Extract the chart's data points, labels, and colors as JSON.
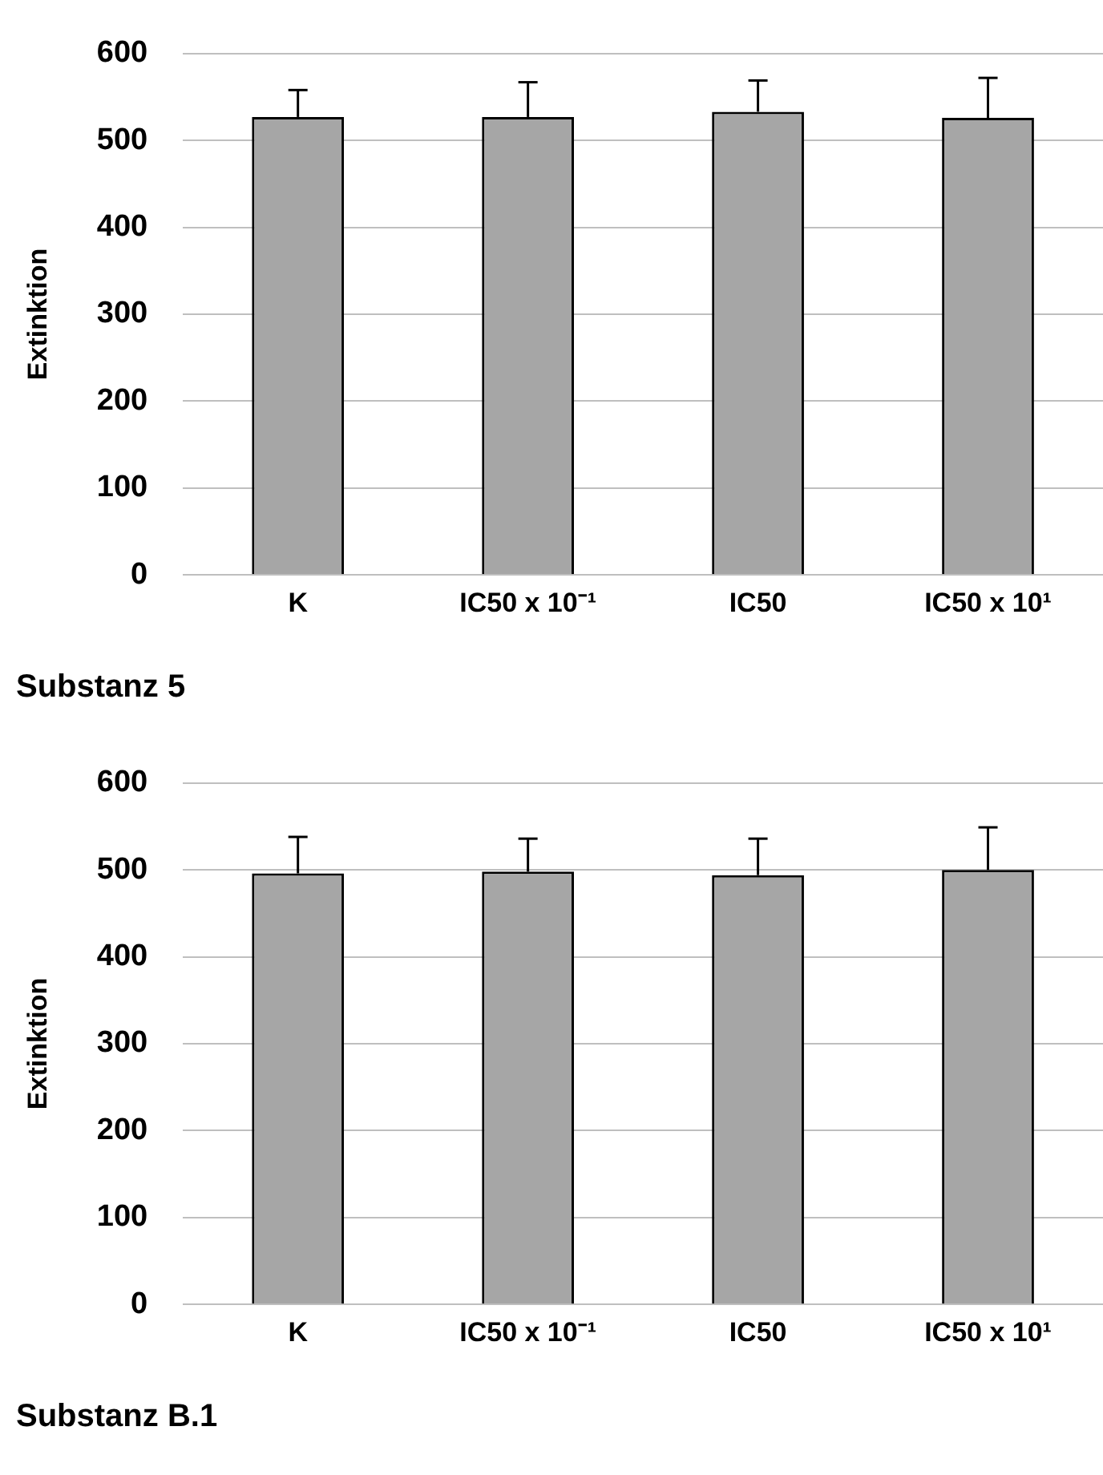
{
  "chart_data": [
    {
      "type": "bar",
      "title": "Substanz 5",
      "ylabel": "Extinktion",
      "categories": [
        "K",
        "IC50 x 10⁻¹",
        "IC50",
        "IC50 x 10¹"
      ],
      "values": [
        527,
        527,
        533,
        526
      ],
      "color": "#a6a6a6",
      "errors": [
        [
          527,
          558
        ],
        [
          527,
          567
        ],
        [
          533,
          569
        ],
        [
          526,
          572
        ]
      ],
      "ylim": [
        0,
        600
      ],
      "yticks": [
        0,
        100,
        200,
        300,
        400,
        500,
        600
      ],
      "grid": "y",
      "legend": false
    },
    {
      "type": "bar",
      "title": "Substanz B.1",
      "ylabel": "Extinktion",
      "categories": [
        "K",
        "IC50 x 10⁻¹",
        "IC50",
        "IC50 x 10¹"
      ],
      "values": [
        496,
        498,
        494,
        500
      ],
      "color": "#a6a6a6",
      "errors": [
        [
          496,
          538
        ],
        [
          498,
          536
        ],
        [
          494,
          536
        ],
        [
          500,
          549
        ]
      ],
      "ylim": [
        0,
        600
      ],
      "yticks": [
        0,
        100,
        200,
        300,
        400,
        500,
        600
      ],
      "grid": "y",
      "legend": false
    }
  ]
}
